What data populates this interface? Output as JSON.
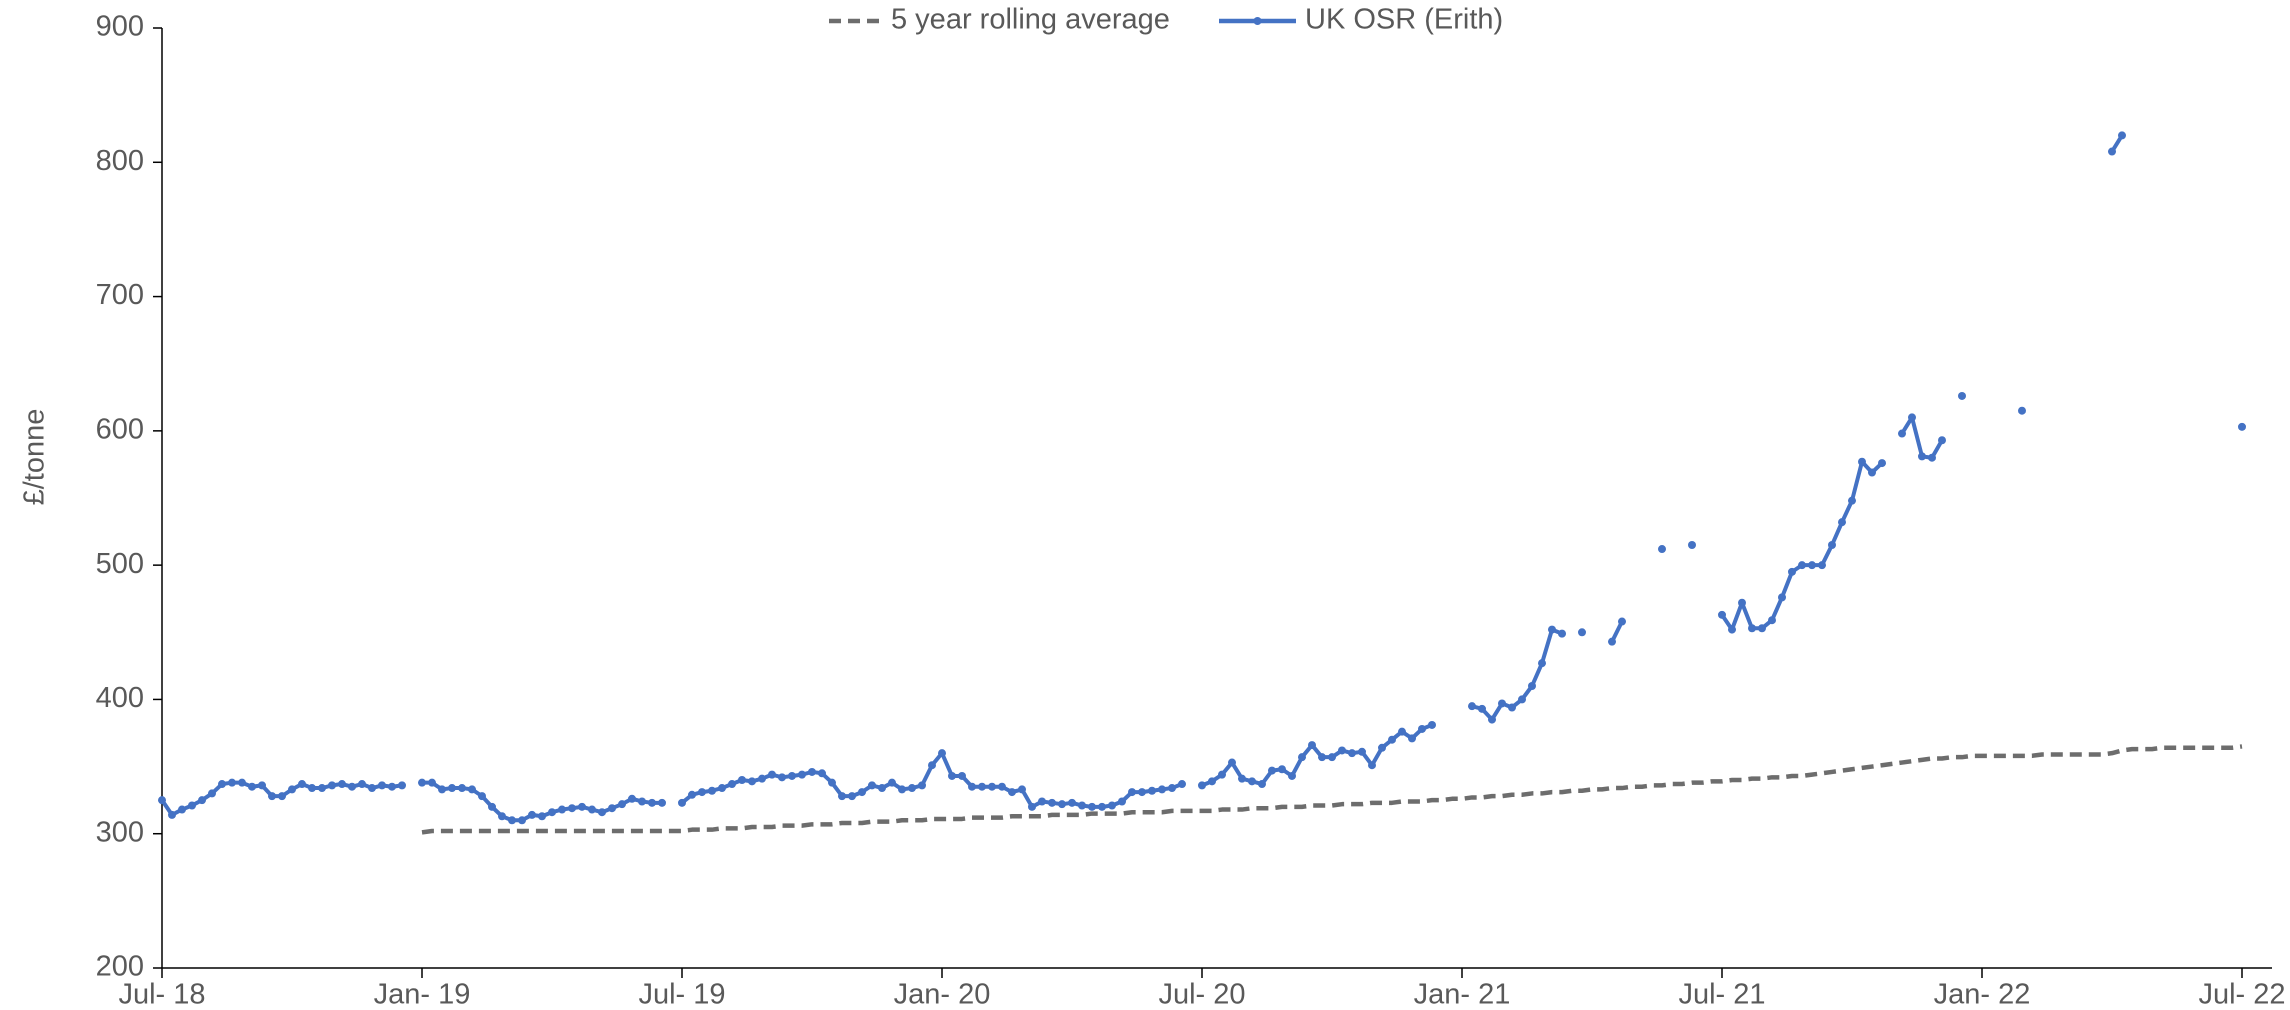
{
  "chart_data": {
    "type": "line",
    "ylabel": "£/tonne",
    "legend": "top",
    "categories": [
      "Jul- 18",
      null,
      null,
      null,
      null,
      null,
      null,
      null,
      null,
      null,
      null,
      null,
      null,
      null,
      null,
      null,
      null,
      null,
      null,
      null,
      null,
      null,
      null,
      null,
      null,
      null,
      "Jan- 19",
      null,
      null,
      null,
      null,
      null,
      null,
      null,
      null,
      null,
      null,
      null,
      null,
      null,
      null,
      null,
      null,
      null,
      null,
      null,
      null,
      null,
      null,
      null,
      null,
      null,
      "Jul- 19",
      null,
      null,
      null,
      null,
      null,
      null,
      null,
      null,
      null,
      null,
      null,
      null,
      null,
      null,
      null,
      null,
      null,
      null,
      null,
      null,
      null,
      null,
      null,
      null,
      null,
      "Jan- 20",
      null,
      null,
      null,
      null,
      null,
      null,
      null,
      null,
      null,
      null,
      null,
      null,
      null,
      null,
      null,
      null,
      null,
      null,
      null,
      null,
      null,
      null,
      null,
      null,
      null,
      "Jul- 20",
      null,
      null,
      null,
      null,
      null,
      null,
      null,
      null,
      null,
      null,
      null,
      null,
      null,
      null,
      null,
      null,
      null,
      null,
      null,
      null,
      null,
      null,
      null,
      null,
      null,
      "Jan- 21",
      null,
      null,
      null,
      null,
      null,
      null,
      null,
      null,
      null,
      null,
      null,
      null,
      null,
      null,
      null,
      null,
      null,
      null,
      null,
      null,
      null,
      null,
      null,
      null,
      null,
      "Jul- 21",
      null,
      null,
      null,
      null,
      null,
      null,
      null,
      null,
      null,
      null,
      null,
      null,
      null,
      null,
      null,
      null,
      null,
      null,
      null,
      null,
      null,
      null,
      null,
      null,
      null,
      "Jan- 22",
      null,
      null,
      null,
      null,
      null,
      null,
      null,
      null,
      null,
      null,
      null,
      null,
      null,
      null,
      null,
      null,
      null,
      null,
      null,
      null,
      null,
      null,
      null,
      null,
      null,
      "Jul- 22"
    ],
    "series": [
      {
        "name": "5 year rolling average",
        "color": "#6d6d6d",
        "dashed": true,
        "markers": false,
        "values": [
          null,
          null,
          null,
          null,
          null,
          null,
          null,
          null,
          null,
          null,
          null,
          null,
          null,
          null,
          null,
          null,
          null,
          null,
          null,
          null,
          null,
          null,
          null,
          null,
          null,
          null,
          301,
          302,
          302,
          302,
          302,
          302,
          302,
          302,
          302,
          302,
          302,
          302,
          302,
          302,
          302,
          302,
          302,
          302,
          302,
          302,
          302,
          302,
          302,
          302,
          302,
          302,
          302,
          303,
          303,
          303,
          304,
          304,
          304,
          305,
          305,
          305,
          306,
          306,
          306,
          307,
          307,
          307,
          308,
          308,
          308,
          309,
          309,
          309,
          310,
          310,
          310,
          311,
          311,
          311,
          311,
          312,
          312,
          312,
          312,
          313,
          313,
          313,
          313,
          314,
          314,
          314,
          314,
          315,
          315,
          315,
          315,
          316,
          316,
          316,
          316,
          317,
          317,
          317,
          317,
          317,
          318,
          318,
          318,
          319,
          319,
          319,
          320,
          320,
          320,
          321,
          321,
          321,
          322,
          322,
          322,
          323,
          323,
          323,
          324,
          324,
          324,
          325,
          325,
          326,
          326,
          327,
          327,
          328,
          328,
          329,
          329,
          330,
          330,
          331,
          331,
          332,
          332,
          333,
          333,
          334,
          334,
          335,
          335,
          336,
          336,
          337,
          337,
          338,
          338,
          339,
          339,
          340,
          340,
          341,
          341,
          342,
          342,
          343,
          343,
          344,
          345,
          346,
          347,
          348,
          349,
          350,
          351,
          352,
          353,
          354,
          355,
          356,
          356,
          357,
          357,
          358,
          358,
          358,
          358,
          358,
          358,
          358,
          359,
          359,
          359,
          359,
          359,
          359,
          359,
          360,
          362,
          363,
          363,
          363,
          364,
          364,
          364,
          364,
          364,
          364,
          364,
          364,
          365
        ]
      },
      {
        "name": "UK OSR (Erith)",
        "color": "#4472c4",
        "dashed": false,
        "markers": true,
        "values": [
          325,
          314,
          318,
          321,
          325,
          330,
          337,
          338,
          338,
          335,
          336,
          328,
          328,
          333,
          337,
          334,
          334,
          336,
          337,
          335,
          337,
          334,
          336,
          335,
          336,
          null,
          338,
          338,
          333,
          334,
          334,
          333,
          328,
          320,
          313,
          310,
          310,
          314,
          313,
          316,
          318,
          319,
          320,
          318,
          316,
          319,
          322,
          326,
          324,
          323,
          323,
          null,
          323,
          329,
          331,
          332,
          334,
          337,
          340,
          339,
          341,
          344,
          342,
          343,
          344,
          346,
          345,
          338,
          328,
          328,
          331,
          336,
          334,
          338,
          333,
          334,
          336,
          351,
          360,
          343,
          343,
          335,
          335,
          335,
          335,
          331,
          333,
          320,
          324,
          323,
          322,
          323,
          321,
          320,
          320,
          321,
          324,
          331,
          331,
          332,
          333,
          334,
          337,
          null,
          336,
          339,
          344,
          353,
          341,
          339,
          337,
          347,
          348,
          343,
          357,
          366,
          357,
          357,
          362,
          360,
          361,
          351,
          364,
          370,
          376,
          371,
          378,
          381,
          null,
          null,
          null,
          395,
          393,
          385,
          397,
          394,
          400,
          410,
          427,
          452,
          449,
          null,
          450,
          null,
          null,
          443,
          458,
          null,
          null,
          null,
          512,
          null,
          null,
          515,
          null,
          null,
          463,
          452,
          472,
          453,
          453,
          459,
          476,
          495,
          500,
          500,
          500,
          515,
          532,
          548,
          577,
          569,
          576,
          null,
          598,
          610,
          581,
          580,
          593,
          null,
          626,
          null,
          null,
          null,
          null,
          null,
          615,
          null,
          null,
          null,
          null,
          null,
          null,
          null,
          null,
          808,
          820,
          null,
          null,
          null,
          null,
          null,
          null,
          null,
          null,
          null,
          null,
          null,
          603
        ]
      }
    ],
    "ylim": [
      200,
      900
    ],
    "yticks": [
      200,
      300,
      400,
      500,
      600,
      700,
      800,
      900
    ],
    "grid": false
  }
}
